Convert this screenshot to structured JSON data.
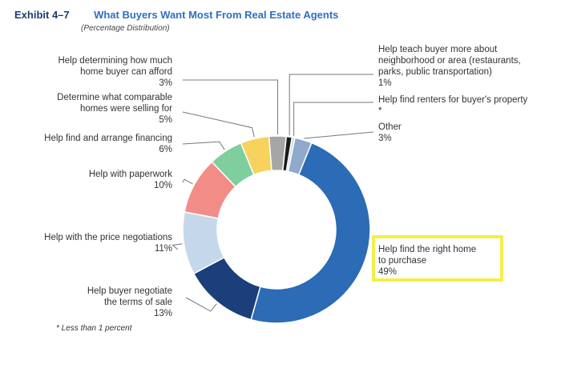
{
  "header": {
    "exhibit": "Exhibit 4–7",
    "title": "What Buyers Want Most From Real Estate Agents",
    "subtitle": "(Percentage Distribution)"
  },
  "footnote": "* Less than 1 percent",
  "chart_data": {
    "type": "pie",
    "title": "What Buyers Want Most From Real Estate Agents",
    "subtitle": "(Percentage Distribution)",
    "donut": true,
    "slices": [
      {
        "label": [
          "Help  find the right home",
          "to purchase"
        ],
        "value_label": "49%",
        "value": 49,
        "color": "#2c6bb5"
      },
      {
        "label": [
          "Help buyer negotiate",
          "the terms of sale"
        ],
        "value_label": "13%",
        "value": 13,
        "color": "#1b3f7a"
      },
      {
        "label": [
          "Help with the price negotiations"
        ],
        "value_label": "11%",
        "value": 11,
        "color": "#c5d8eb"
      },
      {
        "label": [
          "Help with paperwork"
        ],
        "value_label": "10%",
        "value": 10,
        "color": "#f28c86"
      },
      {
        "label": [
          "Help find and arrange financing"
        ],
        "value_label": "6%",
        "value": 6,
        "color": "#7fcf9e"
      },
      {
        "label": [
          "Determine what comparable",
          "homes were selling for"
        ],
        "value_label": "5%",
        "value": 5,
        "color": "#f7d35e"
      },
      {
        "label": [
          "Help determining how much",
          "home buyer can afford"
        ],
        "value_label": "3%",
        "value": 3,
        "color": "#a6a6a6"
      },
      {
        "label": [
          "Help teach buyer more about",
          "neighborhood or area (restaurants,",
          "parks, public transportation)"
        ],
        "value_label": "1%",
        "value": 1,
        "color": "#1a1a1a"
      },
      {
        "label": [
          "Help find renters for buyer's property"
        ],
        "value_label": "*",
        "value": 0.5,
        "color": "#d9d9d9"
      },
      {
        "label": [
          "Other"
        ],
        "value_label": "3%",
        "value": 3,
        "color": "#8fa9cc"
      }
    ],
    "highlighted": "Help  find the right home to purchase"
  }
}
